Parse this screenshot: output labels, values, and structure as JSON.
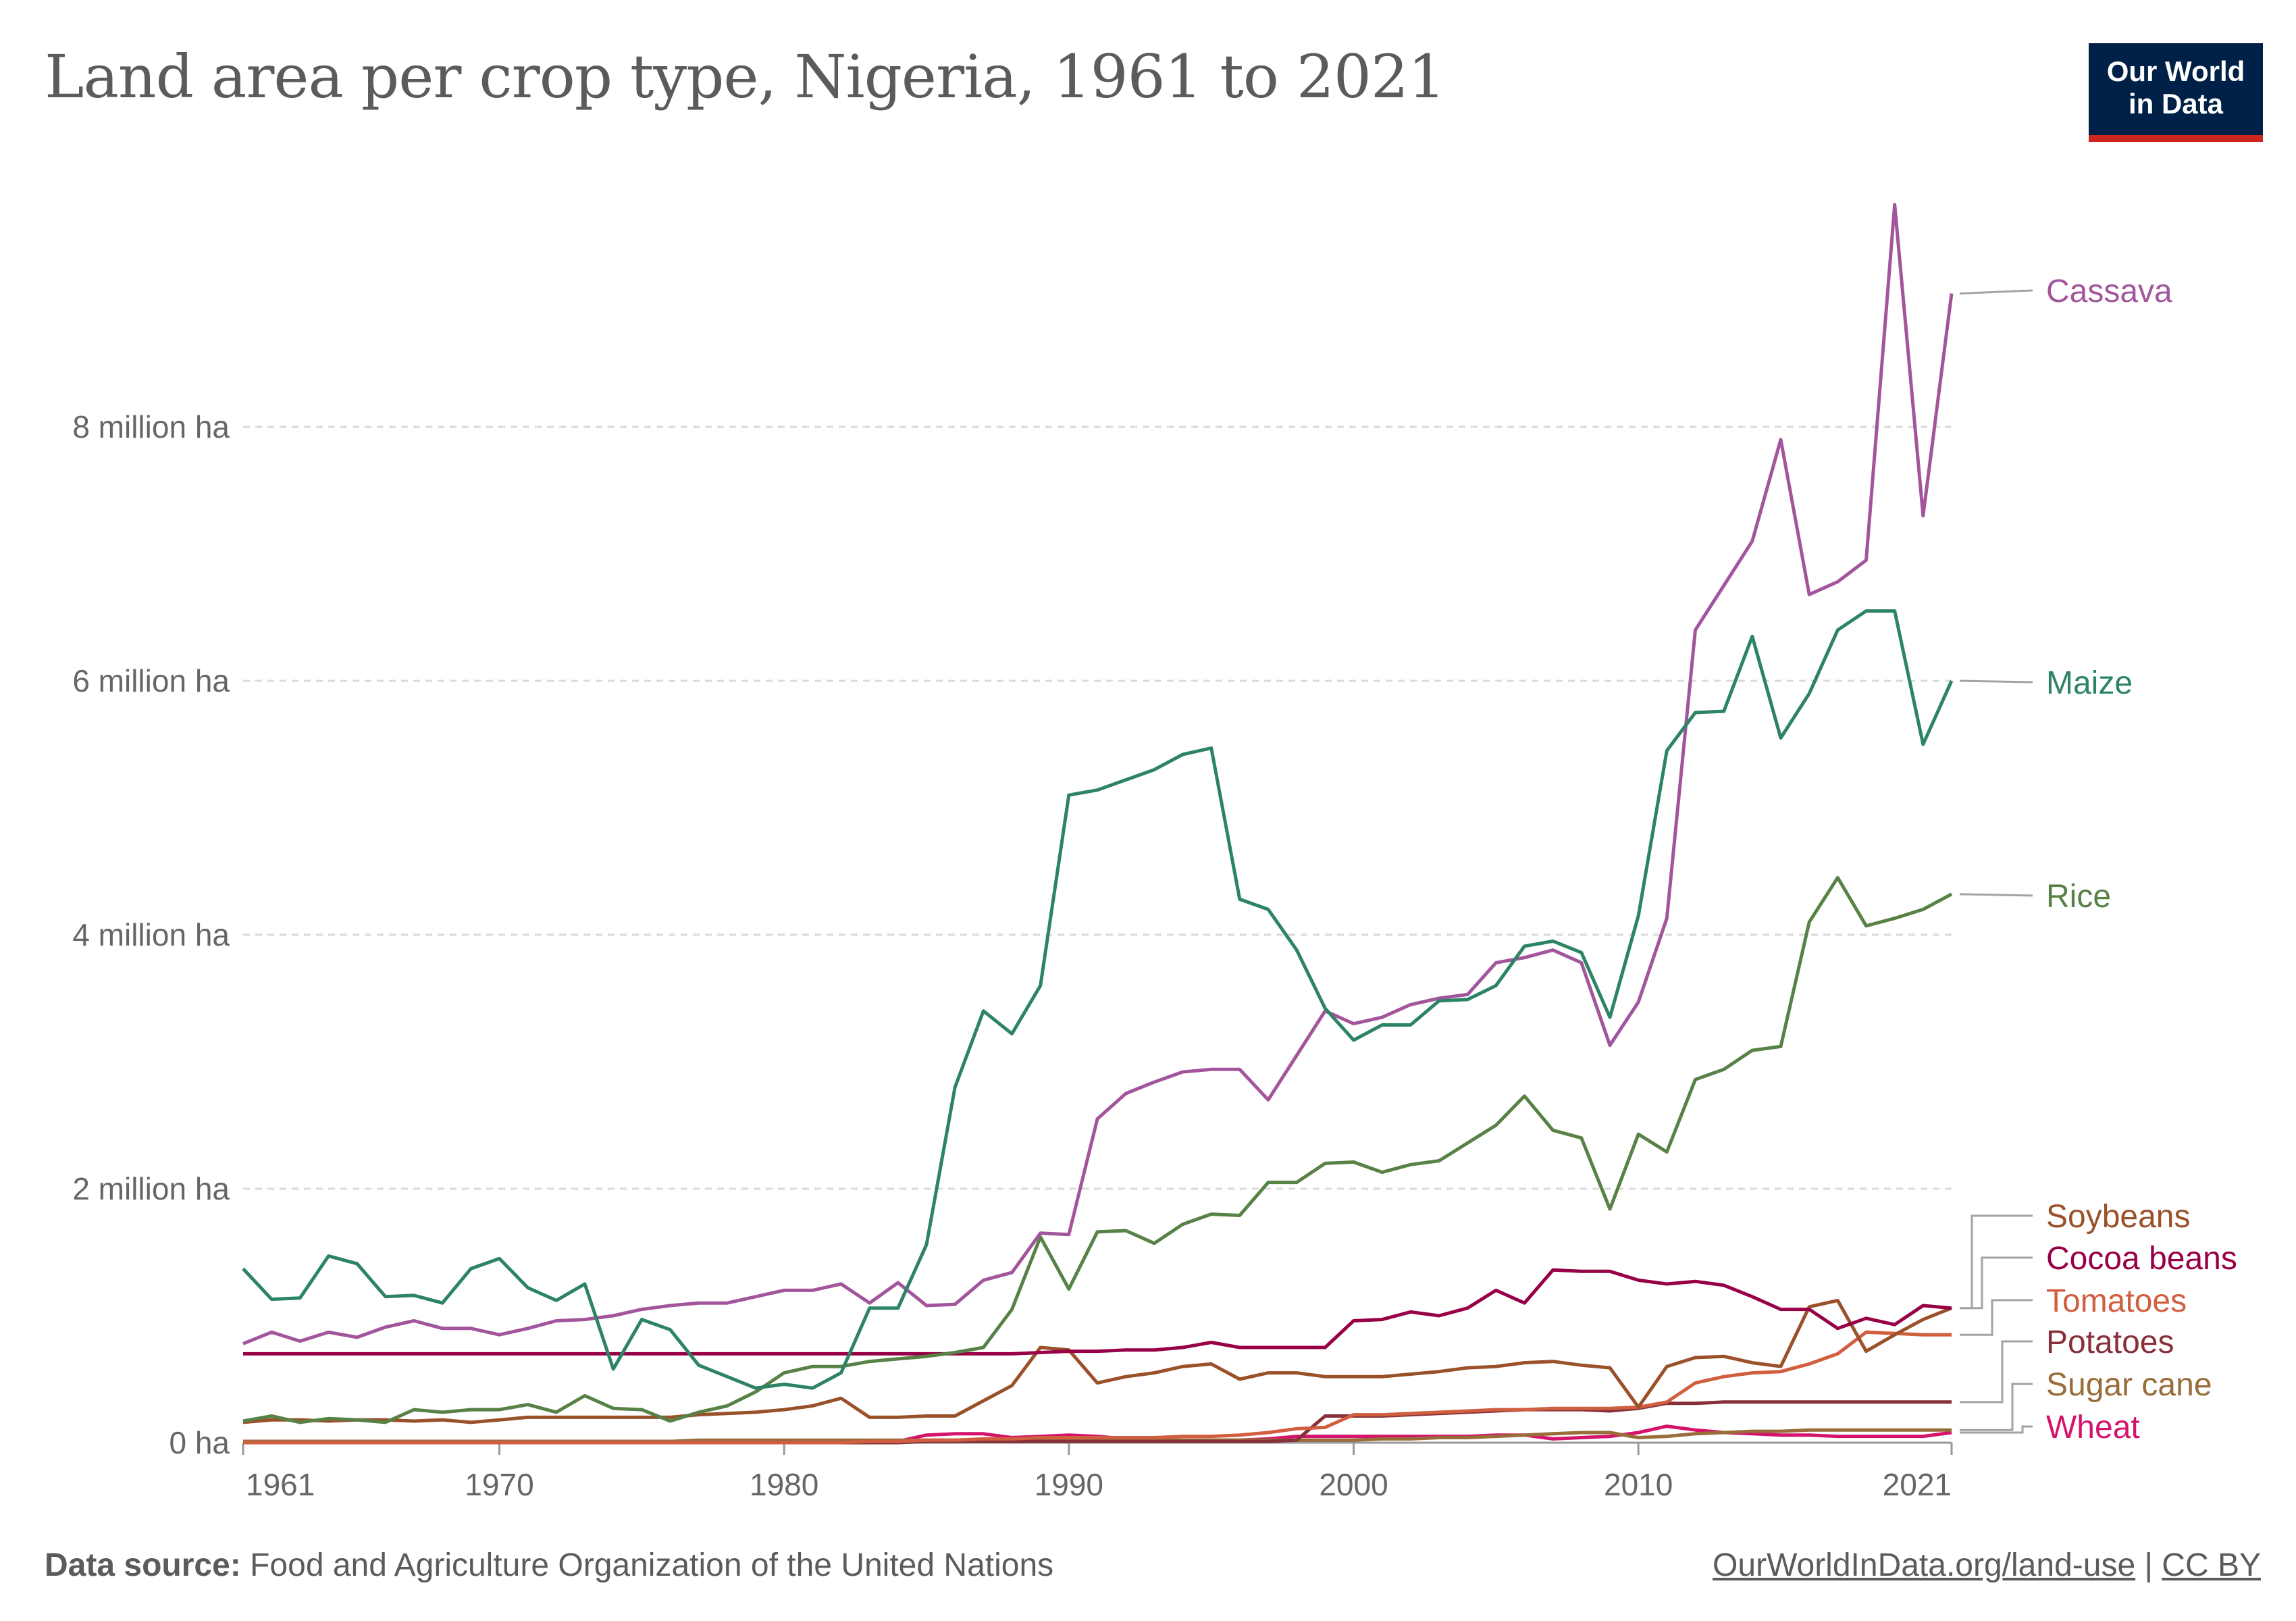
{
  "header": {
    "title": "Land area per crop type, Nigeria, 1961 to 2021",
    "logo_line1": "Our World",
    "logo_line2": "in Data"
  },
  "footer": {
    "source_label": "Data source:",
    "source_text": "Food and Agriculture Organization of the United Nations",
    "link": "OurWorldInData.org/land-use",
    "separator": "|",
    "license": "CC BY"
  },
  "chart_data": {
    "type": "line",
    "title": "Land area per crop type, Nigeria, 1961 to 2021",
    "xlabel": "",
    "ylabel": "",
    "ylim": [
      0,
      10
    ],
    "xlim": [
      1961,
      2021
    ],
    "y_unit": "million ha",
    "y_ticks": [
      {
        "value": 0,
        "label": "0 ha"
      },
      {
        "value": 2,
        "label": "2 million ha"
      },
      {
        "value": 4,
        "label": "4 million ha"
      },
      {
        "value": 6,
        "label": "6 million ha"
      },
      {
        "value": 8,
        "label": "8 million ha"
      }
    ],
    "x_ticks": [
      {
        "value": 1961,
        "label": "1961"
      },
      {
        "value": 1970,
        "label": "1970"
      },
      {
        "value": 1980,
        "label": "1980"
      },
      {
        "value": 1990,
        "label": "1990"
      },
      {
        "value": 2000,
        "label": "2000"
      },
      {
        "value": 2010,
        "label": "2010"
      },
      {
        "value": 2021,
        "label": "2021"
      }
    ],
    "grid": "horizontal dashed",
    "legend": "right, line-end labels",
    "x_start": 1961,
    "series": [
      {
        "name": "Cassava",
        "color": "#a2559c",
        "values": [
          0.78,
          0.87,
          0.8,
          0.87,
          0.83,
          0.91,
          0.96,
          0.9,
          0.9,
          0.85,
          0.9,
          0.96,
          0.97,
          1.0,
          1.05,
          1.08,
          1.1,
          1.1,
          1.15,
          1.2,
          1.2,
          1.25,
          1.1,
          1.26,
          1.08,
          1.09,
          1.28,
          1.34,
          1.65,
          1.64,
          2.55,
          2.75,
          2.84,
          2.92,
          2.94,
          2.94,
          2.7,
          3.05,
          3.4,
          3.3,
          3.35,
          3.45,
          3.5,
          3.53,
          3.78,
          3.82,
          3.88,
          3.78,
          3.13,
          3.47,
          4.13,
          6.4,
          6.75,
          7.1,
          7.9,
          6.68,
          6.78,
          6.95,
          9.75,
          7.3,
          9.05
        ]
      },
      {
        "name": "Maize",
        "color": "#2c8465",
        "values": [
          1.37,
          1.13,
          1.14,
          1.47,
          1.41,
          1.15,
          1.16,
          1.1,
          1.37,
          1.45,
          1.22,
          1.12,
          1.25,
          0.58,
          0.97,
          0.89,
          0.61,
          0.52,
          0.43,
          0.46,
          0.43,
          0.55,
          1.06,
          1.06,
          1.56,
          2.8,
          3.4,
          3.22,
          3.6,
          5.1,
          5.14,
          5.22,
          5.3,
          5.42,
          5.47,
          4.28,
          4.2,
          3.88,
          3.42,
          3.17,
          3.29,
          3.29,
          3.48,
          3.49,
          3.6,
          3.91,
          3.95,
          3.86,
          3.35,
          4.15,
          5.45,
          5.75,
          5.76,
          6.35,
          5.55,
          5.9,
          6.4,
          6.55,
          6.55,
          5.5,
          6.0
        ]
      },
      {
        "name": "Rice",
        "color": "#578145",
        "values": [
          0.17,
          0.21,
          0.16,
          0.19,
          0.18,
          0.16,
          0.26,
          0.24,
          0.26,
          0.26,
          0.3,
          0.24,
          0.37,
          0.27,
          0.26,
          0.17,
          0.24,
          0.29,
          0.4,
          0.55,
          0.6,
          0.6,
          0.64,
          0.66,
          0.68,
          0.71,
          0.75,
          1.05,
          1.62,
          1.21,
          1.66,
          1.67,
          1.57,
          1.72,
          1.8,
          1.79,
          2.05,
          2.05,
          2.2,
          2.21,
          2.13,
          2.19,
          2.22,
          2.36,
          2.5,
          2.73,
          2.46,
          2.4,
          1.84,
          2.43,
          2.29,
          2.86,
          2.94,
          3.09,
          3.12,
          4.1,
          4.45,
          4.07,
          4.13,
          4.2,
          4.32
        ]
      },
      {
        "name": "Soybeans",
        "color": "#9a5129",
        "values": [
          0.16,
          0.18,
          0.18,
          0.17,
          0.18,
          0.18,
          0.17,
          0.18,
          0.16,
          0.18,
          0.2,
          0.2,
          0.2,
          0.2,
          0.2,
          0.2,
          0.22,
          0.23,
          0.24,
          0.26,
          0.29,
          0.35,
          0.2,
          0.2,
          0.21,
          0.21,
          0.33,
          0.45,
          0.75,
          0.73,
          0.47,
          0.52,
          0.55,
          0.6,
          0.62,
          0.5,
          0.55,
          0.55,
          0.52,
          0.52,
          0.52,
          0.54,
          0.56,
          0.59,
          0.6,
          0.63,
          0.64,
          0.61,
          0.59,
          0.28,
          0.6,
          0.67,
          0.68,
          0.63,
          0.6,
          1.07,
          1.12,
          0.72,
          0.85,
          0.97,
          1.06
        ]
      },
      {
        "name": "Cocoa beans",
        "color": "#970046",
        "values": [
          0.7,
          0.7,
          0.7,
          0.7,
          0.7,
          0.7,
          0.7,
          0.7,
          0.7,
          0.7,
          0.7,
          0.7,
          0.7,
          0.7,
          0.7,
          0.7,
          0.7,
          0.7,
          0.7,
          0.7,
          0.7,
          0.7,
          0.7,
          0.7,
          0.7,
          0.7,
          0.7,
          0.7,
          0.71,
          0.72,
          0.72,
          0.73,
          0.73,
          0.75,
          0.79,
          0.75,
          0.75,
          0.75,
          0.75,
          0.96,
          0.97,
          1.03,
          1.0,
          1.06,
          1.2,
          1.1,
          1.36,
          1.35,
          1.35,
          1.28,
          1.25,
          1.27,
          1.24,
          1.15,
          1.05,
          1.05,
          0.9,
          0.98,
          0.93,
          1.08,
          1.06
        ]
      },
      {
        "name": "Tomatoes",
        "color": "#d05f3f",
        "values": [
          0,
          0,
          0,
          0,
          0,
          0,
          0,
          0,
          0,
          0,
          0,
          0,
          0,
          0,
          0,
          0,
          0,
          0,
          0,
          0,
          0,
          0,
          0.01,
          0.01,
          0.02,
          0.02,
          0.03,
          0.03,
          0.04,
          0.04,
          0.04,
          0.04,
          0.04,
          0.05,
          0.05,
          0.06,
          0.08,
          0.11,
          0.12,
          0.22,
          0.22,
          0.23,
          0.24,
          0.25,
          0.26,
          0.26,
          0.27,
          0.27,
          0.27,
          0.28,
          0.32,
          0.47,
          0.52,
          0.55,
          0.56,
          0.62,
          0.7,
          0.87,
          0.86,
          0.85,
          0.85
        ]
      },
      {
        "name": "Potatoes",
        "color": "#883039",
        "values": [
          0,
          0,
          0,
          0,
          0,
          0,
          0,
          0,
          0,
          0,
          0,
          0,
          0,
          0,
          0,
          0,
          0,
          0,
          0,
          0,
          0,
          0,
          0,
          0,
          0.01,
          0.01,
          0.01,
          0.01,
          0.01,
          0.01,
          0.01,
          0.01,
          0.01,
          0.01,
          0.01,
          0.01,
          0.01,
          0.02,
          0.21,
          0.21,
          0.21,
          0.22,
          0.23,
          0.24,
          0.25,
          0.26,
          0.26,
          0.26,
          0.25,
          0.27,
          0.31,
          0.31,
          0.32,
          0.32,
          0.32,
          0.32,
          0.32,
          0.32,
          0.32,
          0.32,
          0.32
        ]
      },
      {
        "name": "Sugar cane",
        "color": "#996d39",
        "values": [
          0.01,
          0.01,
          0.01,
          0.01,
          0.01,
          0.01,
          0.01,
          0.01,
          0.01,
          0.01,
          0.01,
          0.01,
          0.01,
          0.01,
          0.01,
          0.01,
          0.02,
          0.02,
          0.02,
          0.02,
          0.02,
          0.02,
          0.02,
          0.02,
          0.02,
          0.02,
          0.02,
          0.02,
          0.02,
          0.02,
          0.02,
          0.02,
          0.02,
          0.02,
          0.02,
          0.02,
          0.02,
          0.02,
          0.02,
          0.02,
          0.03,
          0.03,
          0.04,
          0.04,
          0.05,
          0.06,
          0.07,
          0.08,
          0.08,
          0.04,
          0.05,
          0.07,
          0.08,
          0.09,
          0.09,
          0.1,
          0.1,
          0.1,
          0.1,
          0.1,
          0.1
        ]
      },
      {
        "name": "Wheat",
        "color": "#d4146c",
        "values": [
          0.01,
          0.01,
          0.01,
          0.01,
          0.01,
          0.01,
          0.01,
          0.01,
          0.01,
          0.01,
          0.01,
          0.01,
          0.01,
          0.01,
          0.01,
          0.01,
          0.01,
          0.01,
          0.01,
          0.01,
          0.01,
          0.01,
          0.01,
          0.01,
          0.06,
          0.07,
          0.07,
          0.04,
          0.05,
          0.06,
          0.05,
          0.03,
          0.02,
          0.02,
          0.02,
          0.02,
          0.03,
          0.05,
          0.05,
          0.05,
          0.05,
          0.05,
          0.05,
          0.05,
          0.06,
          0.06,
          0.03,
          0.04,
          0.05,
          0.08,
          0.13,
          0.1,
          0.08,
          0.07,
          0.06,
          0.06,
          0.05,
          0.05,
          0.05,
          0.05,
          0.08
        ]
      }
    ]
  }
}
